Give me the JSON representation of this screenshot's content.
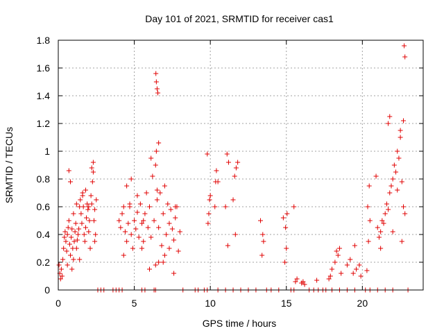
{
  "chart_data": {
    "type": "scatter",
    "title": "Day 101 of 2021, SRMTID for receiver cas1",
    "xlabel": "GPS time / hours",
    "ylabel": "SRMTID / TECUs",
    "xlim": [
      0,
      24
    ],
    "ylim": [
      0,
      1.8
    ],
    "xticks": [
      0,
      5,
      10,
      15,
      20
    ],
    "xtick_labels": [
      "0",
      "5",
      "10",
      "15",
      "20"
    ],
    "yticks": [
      0,
      0.2,
      0.4,
      0.6,
      0.8,
      1,
      1.2,
      1.4,
      1.6,
      1.8
    ],
    "ytick_labels": [
      "0",
      "0.2",
      "0.4",
      "0.6",
      "0.8",
      "1",
      "1.2",
      "1.4",
      "1.6",
      "1.8"
    ],
    "grid": true,
    "marker": "plus",
    "color": "#e00000",
    "series": [
      {
        "name": "SRMTID",
        "x": [
          0.05,
          0.1,
          0.15,
          0.2,
          0.25,
          0.3,
          0.35,
          0.4,
          0.45,
          0.5,
          0.55,
          0.6,
          0.65,
          0.7,
          0.75,
          0.8,
          0.85,
          0.9,
          0.95,
          1.0,
          1.05,
          1.1,
          1.15,
          1.2,
          1.25,
          1.3,
          1.35,
          1.4,
          1.45,
          1.5,
          1.55,
          1.6,
          1.65,
          1.7,
          1.75,
          1.8,
          1.85,
          1.9,
          1.95,
          2.0,
          2.05,
          2.1,
          2.15,
          2.2,
          2.25,
          2.3,
          2.35,
          2.4,
          2.45,
          2.5,
          0.7,
          0.8,
          1.0,
          1.2,
          1.6,
          1.8,
          2.0,
          2.2,
          2.3,
          0.6,
          0.9,
          1.4,
          2.1,
          2.4,
          4.0,
          4.1,
          4.2,
          4.3,
          4.4,
          4.5,
          4.6,
          4.7,
          4.8,
          4.9,
          5.0,
          5.1,
          5.2,
          5.3,
          5.4,
          5.5,
          5.6,
          5.7,
          5.8,
          5.9,
          6.0,
          6.1,
          6.2,
          6.3,
          6.4,
          6.5,
          6.6,
          6.7,
          6.8,
          6.9,
          7.0,
          7.1,
          7.2,
          7.3,
          7.4,
          7.5,
          7.6,
          7.7,
          7.8,
          7.9,
          8.0,
          4.5,
          4.8,
          5.2,
          5.6,
          6.1,
          6.5,
          6.9,
          7.3,
          7.7,
          4.3,
          4.7,
          5.5,
          6.0,
          6.6,
          7.0,
          7.6,
          6.4,
          6.42,
          6.45,
          6.5,
          6.55,
          6.6,
          6.45,
          9.8,
          9.85,
          9.9,
          9.95,
          10.0,
          10.3,
          10.4,
          10.5,
          11.0,
          11.1,
          11.2,
          11.5,
          11.6,
          11.7,
          11.8,
          10.35,
          11.15,
          11.65,
          13.3,
          13.4,
          13.5,
          13.45,
          14.8,
          14.9,
          15.0,
          14.95,
          15.05,
          15.5,
          15.6,
          15.7,
          16.0,
          16.1,
          16.2,
          17.0,
          17.8,
          17.9,
          18.0,
          18.2,
          18.3,
          18.4,
          18.5,
          19.0,
          19.2,
          19.4,
          19.6,
          19.8,
          19.9,
          18.6,
          19.5,
          20.3,
          20.4,
          20.5,
          20.35,
          20.45,
          20.9,
          21.0,
          21.1,
          21.2,
          21.3,
          21.4,
          21.5,
          21.6,
          21.7,
          21.8,
          21.9,
          22.0,
          22.1,
          22.2,
          22.3,
          22.4,
          22.5,
          22.6,
          22.7,
          22.8,
          21.7,
          21.8,
          22.3,
          22.5,
          22.7,
          22.75,
          22.8,
          21.2,
          22.0,
          22.6,
          2.6,
          2.8,
          3.0,
          3.6,
          3.8,
          4.0,
          4.2,
          5.5,
          5.7,
          6.3,
          6.4,
          8.2,
          9.0,
          9.2,
          9.6,
          9.8,
          10.5,
          11.0,
          11.5,
          12.0,
          12.5,
          13.0,
          13.7,
          14.0,
          14.5,
          15.3,
          15.5,
          16.5,
          16.8,
          17.1,
          17.4,
          17.6,
          18.0,
          18.5,
          19.0,
          19.5,
          20.2,
          20.5,
          21.0,
          21.5,
          22.0,
          23.0
        ],
        "y": [
          0.18,
          0.12,
          0.08,
          0.15,
          0.1,
          0.22,
          0.3,
          0.38,
          0.42,
          0.35,
          0.28,
          0.4,
          0.45,
          0.5,
          0.33,
          0.25,
          0.38,
          0.44,
          0.3,
          0.22,
          0.35,
          0.42,
          0.48,
          0.3,
          0.36,
          0.4,
          0.44,
          0.6,
          0.65,
          0.55,
          0.48,
          0.7,
          0.6,
          0.4,
          0.35,
          0.45,
          0.52,
          0.62,
          0.58,
          0.42,
          0.5,
          0.3,
          0.68,
          0.62,
          0.78,
          0.85,
          0.5,
          0.58,
          0.4,
          0.65,
          0.86,
          0.78,
          0.55,
          0.62,
          0.68,
          0.72,
          0.6,
          0.88,
          0.92,
          0.18,
          0.15,
          0.22,
          0.3,
          0.35,
          0.5,
          0.45,
          0.55,
          0.6,
          0.42,
          0.35,
          0.48,
          0.62,
          0.4,
          0.3,
          0.5,
          0.44,
          0.56,
          0.38,
          0.62,
          0.48,
          0.35,
          0.55,
          0.7,
          0.45,
          0.6,
          0.38,
          0.82,
          0.5,
          0.9,
          0.65,
          0.45,
          0.7,
          0.32,
          0.55,
          0.75,
          0.4,
          0.62,
          0.48,
          0.58,
          0.44,
          0.36,
          0.52,
          0.6,
          0.28,
          0.42,
          0.75,
          0.8,
          0.68,
          0.5,
          0.95,
          0.72,
          0.2,
          0.3,
          0.6,
          0.25,
          0.6,
          0.3,
          0.15,
          0.2,
          0.25,
          0.12,
          0.18,
          1.56,
          1.5,
          1.45,
          1.42,
          1.06,
          1.0,
          0.98,
          0.48,
          0.55,
          0.65,
          0.68,
          0.6,
          0.86,
          0.78,
          0.6,
          0.98,
          0.92,
          0.65,
          0.82,
          0.88,
          0.92,
          0.78,
          0.32,
          0.4,
          0.5,
          0.25,
          0.35,
          0.4,
          0.52,
          0.2,
          0.3,
          0.45,
          0.55,
          0.6,
          0.06,
          0.08,
          0.05,
          0.06,
          0.04,
          0.07,
          0.08,
          0.1,
          0.15,
          0.2,
          0.28,
          0.25,
          0.3,
          0.18,
          0.22,
          0.12,
          0.15,
          0.18,
          0.1,
          0.12,
          0.32,
          0.14,
          0.35,
          0.5,
          0.6,
          0.75,
          0.82,
          0.45,
          0.38,
          0.42,
          0.5,
          0.48,
          0.55,
          0.62,
          0.58,
          0.7,
          0.75,
          0.8,
          0.9,
          0.85,
          0.72,
          0.95,
          1.1,
          0.78,
          0.6,
          0.55,
          1.2,
          1.25,
          1.0,
          1.15,
          1.22,
          1.76,
          1.68,
          0.3,
          0.42,
          0.35,
          0,
          0,
          0,
          0,
          0,
          0,
          0,
          0,
          0,
          0,
          0,
          0,
          0,
          0,
          0,
          0,
          0,
          0,
          0,
          0,
          0,
          0,
          0,
          0,
          0,
          0,
          0,
          0,
          0,
          0,
          0,
          0,
          0,
          0,
          0,
          0,
          0,
          0,
          0,
          0,
          0,
          0
        ]
      }
    ]
  }
}
